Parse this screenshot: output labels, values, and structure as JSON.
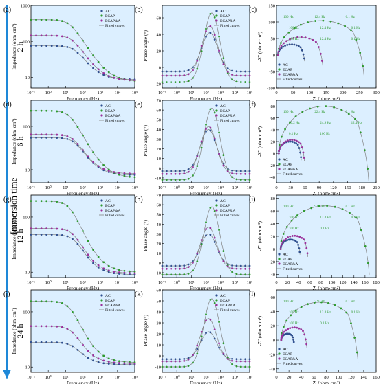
{
  "side_label": "Immersion time",
  "rows": [
    {
      "time": "2 h",
      "letters": [
        "(a)",
        "(b)",
        "(c)"
      ]
    },
    {
      "time": "6 h",
      "letters": [
        "(d)",
        "(e)",
        "(f)"
      ]
    },
    {
      "time": "12 h",
      "letters": [
        "(g)",
        "(h)",
        "(i)"
      ]
    },
    {
      "time": "24 h",
      "letters": [
        "(j)",
        "(k)",
        "(l)"
      ]
    }
  ],
  "legend": [
    "AC",
    "ECAP",
    "ECAP&A",
    "Fitted curves"
  ],
  "colors": {
    "AC": "#2f4f8f",
    "ECAP": "#2e9a2e",
    "ECAP&A": "#9b2f9b",
    "fit": "#808080",
    "arrow": "#1e88d8",
    "background": "#dcefff"
  },
  "chart_data": [
    {
      "id": "a",
      "type": "line",
      "xlabel": "Frequency (Hz)",
      "ylabel": "Impedance (ohm·cm²)",
      "xscale": "log",
      "yscale": "log",
      "xlim": [
        0.1,
        100000
      ],
      "ylim": [
        5,
        1000
      ],
      "xticks": [
        "10⁻¹",
        "10⁰",
        "10¹",
        "10²",
        "10³",
        "10⁴",
        "10⁵"
      ],
      "yticks": [
        "10",
        "100",
        "1000"
      ],
      "series": [
        {
          "name": "AC",
          "Rlow": 75,
          "Rhigh": 8.5,
          "fc": 35
        },
        {
          "name": "ECAP",
          "Rlow": 400,
          "Rhigh": 7.5,
          "fc": 18
        },
        {
          "name": "ECAP&A",
          "Rlow": 145,
          "Rhigh": 8,
          "fc": 25
        }
      ]
    },
    {
      "id": "b",
      "type": "line",
      "xlabel": "Frequency (Hz)",
      "ylabel": "-Phase angle (°)",
      "xscale": "log",
      "xlim": [
        0.1,
        100000
      ],
      "ylim": [
        -25,
        75
      ],
      "xticks": [
        "10⁻¹",
        "10⁰",
        "10¹",
        "10²",
        "10³",
        "10⁴",
        "10⁵"
      ],
      "yticks": [
        "-20",
        "0",
        "20",
        "40",
        "60"
      ],
      "series": [
        {
          "name": "AC",
          "peak": 42,
          "fpeak": 180,
          "low": -5
        },
        {
          "name": "ECAP",
          "peak": 66,
          "fpeak": 250,
          "low": -18
        },
        {
          "name": "ECAP&A",
          "peak": 50,
          "fpeak": 180,
          "low": -10
        }
      ]
    },
    {
      "id": "c",
      "type": "scatter",
      "xlabel": "Z' (ohm·cm²)",
      "ylabel": "-Z'' (ohm·cm²)",
      "xlim": [
        0,
        300
      ],
      "ylim": [
        -100,
        150
      ],
      "xticks": [
        "0",
        "50",
        "100",
        "150",
        "200",
        "250",
        "300"
      ],
      "yticks": [
        "-100",
        "-50",
        "0",
        "50",
        "100",
        "150"
      ],
      "series": [
        {
          "name": "AC",
          "x0": 5,
          "x1": 85
        },
        {
          "name": "ECAP",
          "x0": 5,
          "x1": 265
        },
        {
          "name": "ECAP&A",
          "x0": 5,
          "x1": 140
        }
      ],
      "annotations": [
        "100 Hz",
        "12.4 Hz",
        "0.1 Hz",
        "100 Hz",
        "12.4 Hz",
        "0.1 Hz",
        "100 Hz",
        "12.4 Hz",
        "0.1 Hz"
      ]
    },
    {
      "id": "d",
      "type": "line",
      "xlabel": "Frequency (Hz)",
      "ylabel": "Impedance (ohm·cm²)",
      "xscale": "log",
      "yscale": "log",
      "xlim": [
        0.1,
        100000
      ],
      "ylim": [
        5,
        400
      ],
      "xticks": [
        "10⁻¹",
        "10⁰",
        "10¹",
        "10²",
        "10³",
        "10⁴",
        "10⁵"
      ],
      "yticks": [
        "10",
        "100"
      ],
      "series": [
        {
          "name": "AC",
          "Rlow": 55,
          "Rhigh": 7.5,
          "fc": 35
        },
        {
          "name": "ECAP",
          "Rlow": 230,
          "Rhigh": 6.5,
          "fc": 18
        },
        {
          "name": "ECAP&A",
          "Rlow": 65,
          "Rhigh": 8,
          "fc": 30
        }
      ]
    },
    {
      "id": "e",
      "type": "line",
      "xlabel": "Frequency (Hz)",
      "ylabel": "-Phase angle (°)",
      "xscale": "log",
      "xlim": [
        0.1,
        100000
      ],
      "ylim": [
        -15,
        70
      ],
      "xticks": [
        "10⁻¹",
        "10⁰",
        "10¹",
        "10²",
        "10³",
        "10⁴",
        "10⁵"
      ],
      "yticks": [
        "-10",
        "0",
        "10",
        "20",
        "30",
        "40",
        "50",
        "60",
        "70"
      ],
      "series": [
        {
          "name": "AC",
          "peak": 40,
          "fpeak": 150,
          "low": -3
        },
        {
          "name": "ECAP",
          "peak": 62,
          "fpeak": 250,
          "low": -12
        },
        {
          "name": "ECAP&A",
          "peak": 43,
          "fpeak": 150,
          "low": -6
        }
      ]
    },
    {
      "id": "f",
      "type": "scatter",
      "xlabel": "Z' (ohm·cm²)",
      "ylabel": "-Z'' (ohm·cm²)",
      "xlim": [
        0,
        220
      ],
      "ylim": [
        -50,
        90
      ],
      "xticks": [
        "0",
        "30",
        "60",
        "90",
        "120",
        "150",
        "180",
        "210"
      ],
      "yticks": [
        "-40",
        "-20",
        "0",
        "20",
        "40",
        "60",
        "80"
      ],
      "series": [
        {
          "name": "AC",
          "x0": 5,
          "x1": 55
        },
        {
          "name": "ECAP",
          "x0": 5,
          "x1": 205
        },
        {
          "name": "ECAP&A",
          "x0": 5,
          "x1": 62
        }
      ],
      "annotations": [
        "100 Hz",
        "22.4 Hz",
        "0.1 Hz",
        "26.2 Hz",
        "24.9 Hz",
        "12.4 Hz",
        "0.1 Hz",
        "100 Hz"
      ]
    },
    {
      "id": "g",
      "type": "line",
      "xlabel": "Frequency (Hz)",
      "ylabel": "Impedance (ohm·cm²)",
      "xscale": "log",
      "yscale": "log",
      "xlim": [
        0.1,
        100000
      ],
      "ylim": [
        8,
        250
      ],
      "xticks": [
        "10⁻¹",
        "10⁰",
        "10¹",
        "10²",
        "10³",
        "10⁴",
        "10⁵"
      ],
      "yticks": [
        "10",
        "100"
      ],
      "series": [
        {
          "name": "AC",
          "Rlow": 48,
          "Rhigh": 9,
          "fc": 35
        },
        {
          "name": "ECAP",
          "Rlow": 195,
          "Rhigh": 10,
          "fc": 18
        },
        {
          "name": "ECAP&A",
          "Rlow": 62,
          "Rhigh": 9.5,
          "fc": 30
        }
      ]
    },
    {
      "id": "h",
      "type": "line",
      "xlabel": "Frequency (Hz)",
      "ylabel": "-Phase angle (°)",
      "xscale": "log",
      "xlim": [
        0.1,
        100000
      ],
      "ylim": [
        -15,
        70
      ],
      "xticks": [
        "10⁻¹",
        "10⁰",
        "10¹",
        "10²",
        "10³",
        "10⁴",
        "10⁵"
      ],
      "yticks": [
        "-10",
        "0",
        "10",
        "20",
        "30",
        "40",
        "50",
        "60",
        "70"
      ],
      "series": [
        {
          "name": "AC",
          "peak": 30,
          "fpeak": 150,
          "low": -3
        },
        {
          "name": "ECAP",
          "peak": 58,
          "fpeak": 250,
          "low": -12
        },
        {
          "name": "ECAP&A",
          "peak": 37,
          "fpeak": 150,
          "low": -6
        }
      ]
    },
    {
      "id": "i",
      "type": "scatter",
      "xlabel": "Z' (ohm·cm²)",
      "ylabel": "-Z'' (ohm·cm²)",
      "xlim": [
        0,
        190
      ],
      "ylim": [
        -45,
        85
      ],
      "xticks": [
        "0",
        "20",
        "40",
        "60",
        "80",
        "100",
        "120",
        "140",
        "160",
        "180"
      ],
      "yticks": [
        "-40",
        "-20",
        "0",
        "20",
        "40",
        "60",
        "80"
      ],
      "series": [
        {
          "name": "AC",
          "x0": 8,
          "x1": 45
        },
        {
          "name": "ECAP",
          "x0": 8,
          "x1": 178
        },
        {
          "name": "ECAP&A",
          "x0": 8,
          "x1": 60
        }
      ],
      "annotations": [
        "100 Hz",
        "9.93 Hz",
        "0.1 Hz",
        "100 Hz",
        "12.4 Hz",
        "0.1 Hz",
        "100 Hz",
        "0.1 Hz"
      ]
    },
    {
      "id": "j",
      "type": "line",
      "xlabel": "Frequency (Hz)",
      "ylabel": "Impedance (ohm·cm²)",
      "xscale": "log",
      "yscale": "log",
      "xlim": [
        0.1,
        100000
      ],
      "ylim": [
        8,
        250
      ],
      "xticks": [
        "10⁻¹",
        "10⁰",
        "10¹",
        "10²",
        "10³",
        "10⁴",
        "10⁵"
      ],
      "yticks": [
        "10",
        "100"
      ],
      "series": [
        {
          "name": "AC",
          "Rlow": 28,
          "Rhigh": 11,
          "fc": 30
        },
        {
          "name": "ECAP",
          "Rlow": 155,
          "Rhigh": 12,
          "fc": 18
        },
        {
          "name": "ECAP&A",
          "Rlow": 55,
          "Rhigh": 11.5,
          "fc": 25
        }
      ]
    },
    {
      "id": "k",
      "type": "line",
      "xlabel": "Frequency (Hz)",
      "ylabel": "-Phase angle (°)",
      "xscale": "log",
      "xlim": [
        0.1,
        100000
      ],
      "ylim": [
        -15,
        60
      ],
      "xticks": [
        "10⁻¹",
        "10⁰",
        "10¹",
        "10²",
        "10³",
        "10⁴",
        "10⁵"
      ],
      "yticks": [
        "-10",
        "0",
        "10",
        "20",
        "30",
        "40",
        "50",
        "60"
      ],
      "series": [
        {
          "name": "AC",
          "peak": 22,
          "fpeak": 150,
          "low": -3
        },
        {
          "name": "ECAP",
          "peak": 52,
          "fpeak": 250,
          "low": -10
        },
        {
          "name": "ECAP&A",
          "peak": 34,
          "fpeak": 150,
          "low": -5
        }
      ]
    },
    {
      "id": "l",
      "type": "scatter",
      "xlabel": "Z' (ohm·cm²)",
      "ylabel": "-Z'' (ohm·cm²)",
      "xlim": [
        0,
        170
      ],
      "ylim": [
        -45,
        70
      ],
      "xticks": [
        "0",
        "20",
        "40",
        "60",
        "80",
        "100",
        "120",
        "140",
        "160"
      ],
      "yticks": [
        "-40",
        "-20",
        "0",
        "20",
        "40",
        "60"
      ],
      "series": [
        {
          "name": "AC",
          "x0": 8,
          "x1": 30
        },
        {
          "name": "ECAP",
          "x0": 8,
          "x1": 140
        },
        {
          "name": "ECAP&A",
          "x0": 8,
          "x1": 52
        }
      ],
      "annotations": [
        "100 Hz",
        "7.93 Hz",
        "0.1 Hz",
        "100 Hz",
        "12.4 Hz",
        "0.1 Hz",
        "100 Hz",
        "0.1 Hz"
      ]
    }
  ]
}
